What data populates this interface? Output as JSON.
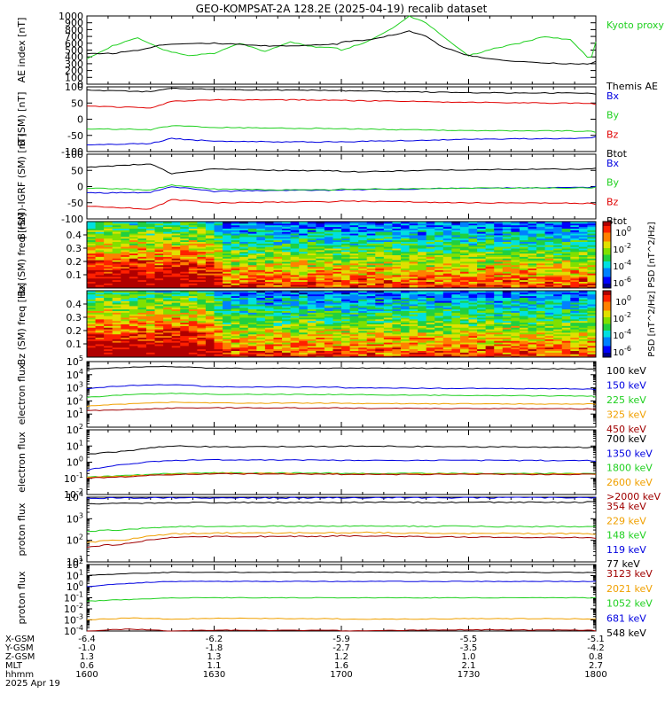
{
  "title": "GEO-KOMPSAT-2A 128.2E (2025-04-19) recalib dataset",
  "colors": {
    "black": "#000000",
    "red": "#e00000",
    "green": "#20d020",
    "blue": "#0000e0",
    "orange": "#f0a000",
    "darkred": "#a00000",
    "kyoto": "#20d020"
  },
  "footer": {
    "row_labels": [
      "X-GSM",
      "Y-GSM",
      "Z-GSM",
      "MLT",
      "hhmm",
      "2025 Apr 19"
    ],
    "columns": [
      [
        "-6.4",
        "-1.0",
        "1.3",
        "0.6",
        "1600"
      ],
      [
        "-6.2",
        "-1.8",
        "1.3",
        "1.1",
        "1630"
      ],
      [
        "-5.9",
        "-2.7",
        "1.2",
        "1.6",
        "1700"
      ],
      [
        "-5.5",
        "-3.5",
        "1.0",
        "2.1",
        "1730"
      ],
      [
        "-5.1",
        "-4.2",
        "0.8",
        "2.7",
        "1800"
      ]
    ]
  },
  "chart_data": [
    {
      "type": "line",
      "ylabel": "AE index [nT]",
      "ylim": [
        0,
        1000
      ],
      "yticks": [
        "0",
        "100",
        "200",
        "300",
        "400",
        "500",
        "600",
        "700",
        "800",
        "900",
        "1000"
      ],
      "x_hhmm": [
        "1600",
        "1630",
        "1700",
        "1730",
        "1800"
      ],
      "series": [
        {
          "name": "Kyoto proxy AE",
          "color": "green",
          "x": [
            1600,
            1606,
            1612,
            1618,
            1624,
            1630,
            1636,
            1642,
            1648,
            1654,
            1700,
            1706,
            1712,
            1716,
            1720,
            1724,
            1730,
            1736,
            1742,
            1748,
            1754,
            1758,
            1800
          ],
          "y": [
            380,
            560,
            680,
            500,
            420,
            450,
            600,
            480,
            620,
            540,
            500,
            620,
            820,
            1000,
            900,
            700,
            420,
            520,
            600,
            700,
            650,
            400,
            620
          ]
        },
        {
          "name": "Themis AE",
          "color": "black",
          "x": [
            1600,
            1606,
            1612,
            1618,
            1624,
            1630,
            1636,
            1642,
            1648,
            1654,
            1700,
            1706,
            1712,
            1716,
            1720,
            1724,
            1730,
            1736,
            1742,
            1748,
            1754,
            1758,
            1800
          ],
          "y": [
            450,
            450,
            500,
            580,
            600,
            600,
            580,
            560,
            560,
            580,
            620,
            650,
            720,
            780,
            700,
            540,
            420,
            360,
            330,
            310,
            300,
            300,
            330
          ]
        }
      ]
    },
    {
      "type": "line",
      "ylabel": "B (SM) [nT]",
      "ylim": [
        -100,
        100
      ],
      "yticks": [
        "-100",
        "-50",
        "0",
        "50",
        "100"
      ],
      "series": [
        {
          "name": "Bx",
          "color": "blue",
          "x": [
            1600,
            1615,
            1620,
            1630,
            1645,
            1700,
            1730,
            1800
          ],
          "y": [
            -80,
            -75,
            -60,
            -68,
            -70,
            -70,
            -62,
            -55
          ]
        },
        {
          "name": "By",
          "color": "green",
          "x": [
            1600,
            1615,
            1620,
            1630,
            1645,
            1700,
            1730,
            1800
          ],
          "y": [
            -30,
            -32,
            -20,
            -25,
            -28,
            -30,
            -35,
            -40
          ]
        },
        {
          "name": "Bz",
          "color": "red",
          "x": [
            1600,
            1615,
            1620,
            1630,
            1645,
            1700,
            1730,
            1800
          ],
          "y": [
            40,
            35,
            55,
            60,
            60,
            58,
            52,
            45
          ]
        },
        {
          "name": "Btot",
          "color": "black",
          "x": [
            1600,
            1615,
            1620,
            1630,
            1645,
            1700,
            1730,
            1800
          ],
          "y": [
            90,
            85,
            95,
            92,
            90,
            88,
            82,
            78
          ]
        }
      ]
    },
    {
      "type": "line",
      "ylabel": "B (SM)-IGRF (SM) [nT]",
      "ylim": [
        -100,
        100
      ],
      "yticks": [
        "-100",
        "-50",
        "0",
        "50",
        "100"
      ],
      "series": [
        {
          "name": "Bx",
          "color": "blue",
          "x": [
            1600,
            1615,
            1620,
            1630,
            1645,
            1700,
            1730,
            1800
          ],
          "y": [
            -20,
            -18,
            0,
            -15,
            -12,
            -10,
            -5,
            0
          ]
        },
        {
          "name": "By",
          "color": "green",
          "x": [
            1600,
            1615,
            1620,
            1630,
            1645,
            1700,
            1730,
            1800
          ],
          "y": [
            -5,
            -10,
            5,
            -8,
            -10,
            -8,
            -5,
            -2
          ]
        },
        {
          "name": "Bz",
          "color": "red",
          "x": [
            1600,
            1615,
            1620,
            1630,
            1645,
            1700,
            1730,
            1800
          ],
          "y": [
            -60,
            -70,
            -40,
            -50,
            -48,
            -45,
            -50,
            -55
          ]
        },
        {
          "name": "Btot",
          "color": "black",
          "x": [
            1600,
            1615,
            1620,
            1630,
            1645,
            1700,
            1730,
            1800
          ],
          "y": [
            60,
            70,
            40,
            55,
            50,
            45,
            52,
            58
          ]
        }
      ]
    },
    {
      "type": "heatmap",
      "ylabel": "Bx (SM) freq [Hz]",
      "yticks": [
        "0.1",
        "0.2",
        "0.3",
        "0.4"
      ],
      "ylim": [
        0,
        0.5
      ],
      "colorbar_label": "PSD [nT^2/Hz]",
      "colorbar_ticks": [
        "10^0",
        "10^-2",
        "10^-4",
        "10^-6"
      ]
    },
    {
      "type": "heatmap",
      "ylabel": "Bz (SM) freq [Hz]",
      "yticks": [
        "0.1",
        "0.2",
        "0.3",
        "0.4"
      ],
      "ylim": [
        0,
        0.5
      ],
      "colorbar_label": "PSD [nT^2/Hz]",
      "colorbar_ticks": [
        "10^0",
        "10^-2",
        "10^-4",
        "10^-6"
      ]
    },
    {
      "type": "line",
      "log": true,
      "ylabel": "electron flux",
      "ylim_exp": [
        0,
        5
      ],
      "yticks": [
        "10^1",
        "10^2",
        "10^3",
        "10^4",
        "10^5"
      ],
      "series": [
        {
          "name": "100 keV",
          "color": "black",
          "x": [
            1600,
            1610,
            1620,
            1630,
            1700,
            1730,
            1800
          ],
          "y": [
            25000,
            38000,
            42000,
            30000,
            32000,
            30000,
            25000
          ]
        },
        {
          "name": "150 keV",
          "color": "blue",
          "x": [
            1600,
            1610,
            1620,
            1630,
            1700,
            1730,
            1800
          ],
          "y": [
            900,
            1500,
            1700,
            1200,
            1000,
            900,
            700
          ]
        },
        {
          "name": "225 keV",
          "color": "green",
          "x": [
            1600,
            1610,
            1620,
            1630,
            1700,
            1730,
            1800
          ],
          "y": [
            180,
            300,
            380,
            320,
            300,
            260,
            200
          ]
        },
        {
          "name": "325 keV",
          "color": "orange",
          "x": [
            1600,
            1610,
            1620,
            1630,
            1700,
            1730,
            1800
          ],
          "y": [
            40,
            60,
            80,
            70,
            65,
            60,
            55
          ]
        },
        {
          "name": "450 keV",
          "color": "darkred",
          "x": [
            1600,
            1610,
            1620,
            1630,
            1700,
            1730,
            1800
          ],
          "y": [
            18,
            22,
            28,
            30,
            28,
            26,
            24
          ]
        }
      ]
    },
    {
      "type": "line",
      "log": true,
      "ylabel": "electron flux",
      "ylim_exp": [
        -2,
        2
      ],
      "yticks": [
        "10^-2",
        "10^-1",
        "10^0",
        "10^1",
        "10^2"
      ],
      "series": [
        {
          "name": "700 keV",
          "color": "black",
          "x": [
            1600,
            1610,
            1620,
            1630,
            1700,
            1730,
            1800
          ],
          "y": [
            3,
            5,
            10,
            9,
            10,
            9,
            7
          ]
        },
        {
          "name": "1350 keV",
          "color": "blue",
          "x": [
            1600,
            1610,
            1620,
            1630,
            1700,
            1730,
            1800
          ],
          "y": [
            0.3,
            0.8,
            1.3,
            1.4,
            1.3,
            1.3,
            1.2
          ]
        },
        {
          "name": "1800 keV",
          "color": "green",
          "x": [
            1600,
            1610,
            1620,
            1630,
            1700,
            1730,
            1800
          ],
          "y": [
            0.12,
            0.15,
            0.2,
            0.22,
            0.2,
            0.2,
            0.2
          ]
        },
        {
          "name": "2600 keV",
          "color": "orange",
          "x": [
            1600,
            1610,
            1620,
            1630,
            1700,
            1730,
            1800
          ],
          "y": [
            0.11,
            0.14,
            0.18,
            0.2,
            0.18,
            0.19,
            0.18
          ]
        },
        {
          "name": ">2000 keV",
          "color": "darkred",
          "x": [
            1600,
            1610,
            1620,
            1630,
            1700,
            1730,
            1800
          ],
          "y": [
            0.1,
            0.13,
            0.17,
            0.19,
            0.17,
            0.18,
            0.17
          ]
        }
      ]
    },
    {
      "type": "line",
      "log": true,
      "ylabel": "proton flux",
      "ylim_exp": [
        1,
        4
      ],
      "yticks": [
        "10^1",
        "10^2",
        "10^3",
        "10^4"
      ],
      "series": [
        {
          "name": "354 keV",
          "color": "darkred",
          "x": [
            1600,
            1610,
            1620,
            1630,
            1700,
            1730,
            1800
          ],
          "y": [
            50,
            70,
            140,
            150,
            160,
            140,
            130
          ]
        },
        {
          "name": "229 keV",
          "color": "orange",
          "x": [
            1600,
            1610,
            1620,
            1630,
            1700,
            1730,
            1800
          ],
          "y": [
            80,
            110,
            200,
            220,
            230,
            210,
            190
          ]
        },
        {
          "name": "148 keV",
          "color": "green",
          "x": [
            1600,
            1610,
            1620,
            1630,
            1700,
            1730,
            1800
          ],
          "y": [
            250,
            330,
            420,
            450,
            460,
            440,
            420
          ]
        },
        {
          "name": "119 keV",
          "color": "blue",
          "x": [
            1600,
            1610,
            1620,
            1630,
            1700,
            1730,
            1800
          ],
          "y": [
            9000,
            9200,
            9300,
            9300,
            9400,
            9500,
            9700
          ]
        },
        {
          "name": "77 keV",
          "color": "black",
          "x": [
            1600,
            1610,
            1620,
            1630,
            1700,
            1730,
            1800
          ],
          "y": [
            5000,
            5200,
            5500,
            5600,
            5700,
            5800,
            6000
          ]
        }
      ]
    },
    {
      "type": "line",
      "log": true,
      "ylabel": "proton flux",
      "ylim_exp": [
        -4,
        2
      ],
      "yticks": [
        "10^-4",
        "10^-3",
        "10^-2",
        "10^-1",
        "10^0",
        "10^1",
        "10^2"
      ],
      "series": [
        {
          "name": "3123 keV",
          "color": "darkred",
          "x": [
            1600,
            1610,
            1620,
            1630,
            1700,
            1730,
            1800
          ],
          "y": [
            0.0001,
            0.00015,
            0.0001,
            0.00012,
            0.0001,
            0.00013,
            0.0001
          ]
        },
        {
          "name": "2021 keV",
          "color": "orange",
          "x": [
            1600,
            1610,
            1620,
            1630,
            1700,
            1730,
            1800
          ],
          "y": [
            0.001,
            0.0015,
            0.0012,
            0.0014,
            0.0011,
            0.0013,
            0.0012
          ]
        },
        {
          "name": "1052 keV",
          "color": "green",
          "x": [
            1600,
            1610,
            1620,
            1630,
            1700,
            1730,
            1800
          ],
          "y": [
            0.05,
            0.07,
            0.1,
            0.1,
            0.1,
            0.1,
            0.1
          ]
        },
        {
          "name": "681 keV",
          "color": "blue",
          "x": [
            1600,
            1610,
            1620,
            1630,
            1700,
            1730,
            1800
          ],
          "y": [
            1,
            2,
            3,
            3,
            3,
            3,
            3
          ]
        },
        {
          "name": "548 keV",
          "color": "black",
          "x": [
            1600,
            1610,
            1620,
            1630,
            1700,
            1730,
            1800
          ],
          "y": [
            10,
            15,
            20,
            20,
            20,
            20,
            18
          ]
        }
      ]
    }
  ]
}
